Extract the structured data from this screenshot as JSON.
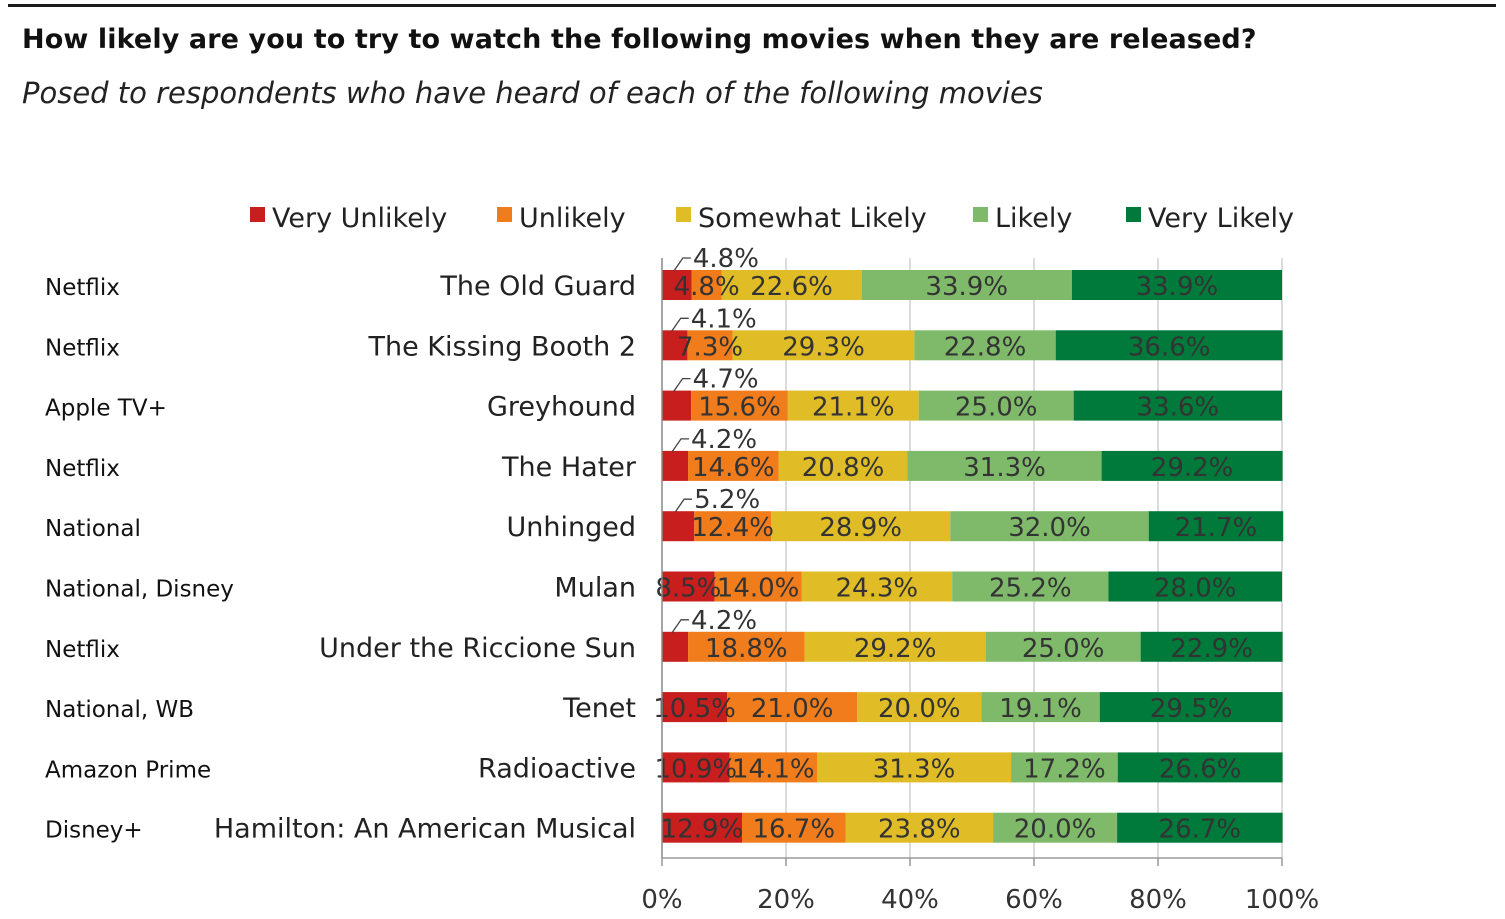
{
  "header": {
    "title": "How likely are you to try to watch the following movies when they are released?",
    "subtitle": "Posed to respondents who have heard of each of the following movies"
  },
  "chart_data": {
    "type": "bar",
    "orientation": "horizontal",
    "stacked": true,
    "percent": true,
    "categories": [
      "The Old Guard",
      "The Kissing Booth 2",
      "Greyhound",
      "The Hater",
      "Unhinged",
      "Mulan",
      "Under the Riccione Sun",
      "Tenet",
      "Radioactive",
      "Hamilton: An American Musical"
    ],
    "platforms": [
      "Netflix",
      "Netflix",
      "Apple TV+",
      "Netflix",
      "National",
      "National, Disney",
      "Netflix",
      "National, WB",
      "Amazon Prime",
      "Disney+"
    ],
    "series": [
      {
        "name": "Very Unlikely",
        "color": "#c81e1e",
        "values": [
          4.8,
          4.1,
          4.7,
          4.2,
          5.2,
          8.5,
          4.2,
          10.5,
          10.9,
          12.9
        ],
        "labels": [
          "4.8%",
          "4.1%",
          "4.7%",
          "4.2%",
          "5.2%",
          "8.5%",
          "4.2%",
          "10.5%",
          "10.9%",
          "12.9%"
        ]
      },
      {
        "name": "Unlikely",
        "color": "#f07c1c",
        "values": [
          4.8,
          7.3,
          15.6,
          14.6,
          12.4,
          14.0,
          18.8,
          21.0,
          14.1,
          16.7
        ],
        "labels": [
          "4.8%",
          "7.3%",
          "15.6%",
          "14.6%",
          "12.4%",
          "14.0%",
          "18.8%",
          "21.0%",
          "14.1%",
          "16.7%"
        ]
      },
      {
        "name": "Somewhat Likely",
        "color": "#e0bd26",
        "values": [
          22.6,
          29.3,
          21.1,
          20.8,
          28.9,
          24.3,
          29.2,
          20.0,
          31.3,
          23.8
        ],
        "labels": [
          "22.6%",
          "29.3%",
          "21.1%",
          "20.8%",
          "28.9%",
          "24.3%",
          "29.2%",
          "20.0%",
          "31.3%",
          "23.8%"
        ]
      },
      {
        "name": "Likely",
        "color": "#7fba6a",
        "values": [
          33.9,
          22.8,
          25.0,
          31.3,
          32.0,
          25.2,
          25.0,
          19.1,
          17.2,
          20.0
        ],
        "labels": [
          "33.9%",
          "22.8%",
          "25.0%",
          "31.3%",
          "32.0%",
          "25.2%",
          "25.0%",
          "19.1%",
          "17.2%",
          "20.0%"
        ]
      },
      {
        "name": "Very Likely",
        "color": "#007a3a",
        "values": [
          33.9,
          36.6,
          33.6,
          29.2,
          21.7,
          28.0,
          22.9,
          29.5,
          26.6,
          26.7
        ],
        "labels": [
          "33.9%",
          "36.6%",
          "33.6%",
          "29.2%",
          "21.7%",
          "28.0%",
          "22.9%",
          "29.5%",
          "26.6%",
          "26.7%"
        ]
      }
    ],
    "x_ticks": [
      "0%",
      "20%",
      "40%",
      "60%",
      "80%",
      "100%"
    ],
    "xlim": [
      0,
      100
    ],
    "grid": true,
    "legend_position": "top"
  }
}
